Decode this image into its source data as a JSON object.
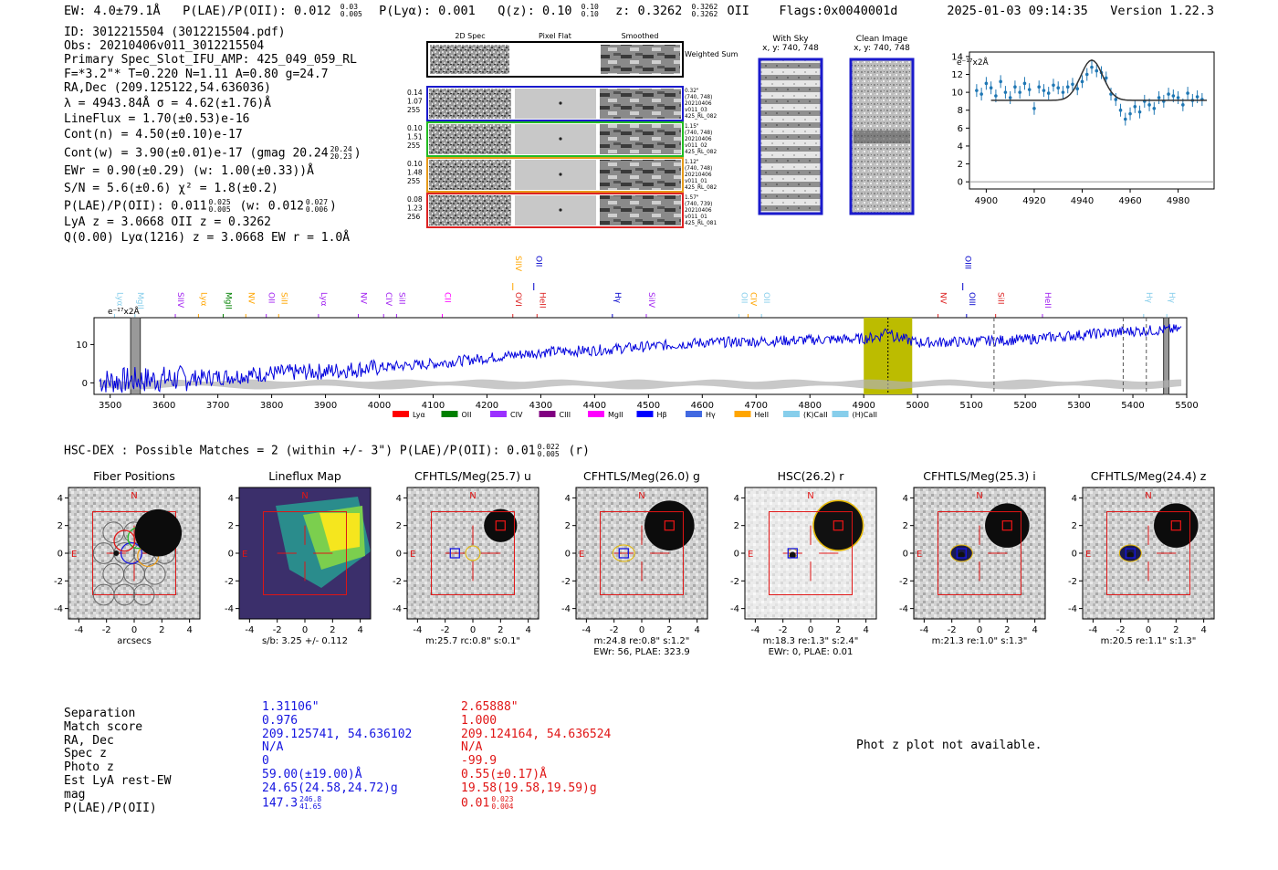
{
  "header": {
    "ew": "EW: 4.0±79.1Å",
    "plae_label": "P(LAE)/P(OII): 0.012",
    "plae_hi": "0.03",
    "plae_lo": "0.005",
    "plya": "P(Lyα): 0.001",
    "qz_label": "Q(z): 0.10",
    "qz_hi": "0.10",
    "qz_lo": "0.10",
    "z_label": "z: 0.3262",
    "z_hi": "0.3262",
    "z_lo": "0.3262",
    "z_line": "OII",
    "flags": "Flags:0x0040001d",
    "datetime": "2025-01-03 09:14:35",
    "version": "Version 1.22.3"
  },
  "info": {
    "id": "ID: 3012215504 (3012215504.pdf)",
    "obs": "Obs: 20210406v011_3012215504",
    "primary": "Primary Spec_Slot_IFU_AMP: 425_049_059_RL",
    "fwhm": "F=*3.2\"*  T=0.220  N=1.11  A=0.80  g=24.7",
    "radec": "RA,Dec (209.125122,54.636036)",
    "lambda": "λ = 4943.84Å  σ = 4.62(±1.76)Å",
    "lineflux": "LineFlux = 1.70(±0.53)e-16",
    "contn": "Cont(n) = 4.50(±0.10)e-17",
    "contw": "Cont(w) = 3.90(±0.01)e-17 (gmag 20.24",
    "contw_hi": "20.24",
    "contw_lo": "20.23",
    "contw_end": ")",
    "ewr": "EWr = 0.90(±0.29) (w: 1.00(±0.33))Å",
    "sn": "S/N = 5.6(±0.6)  χ² = 1.8(±0.2)",
    "plae": "P(LAE)/P(OII): 0.011",
    "plae_hi": "0.025",
    "plae_lo": "0.005",
    "plae_w": "(w: 0.012",
    "plae_w_hi": "0.027",
    "plae_w_lo": "0.006",
    "plae_end": ")",
    "lya_z": "LyA z = 3.0668  OII z = 0.3262",
    "q": "Q(0.00) Lyα(1216) z = 3.0668  EW r = 1.0Å"
  },
  "cutouts": {
    "col_headers": [
      "2D Spec",
      "Pixel Flat",
      "Smoothed"
    ],
    "weighted": "Weighted Sum",
    "rows": [
      {
        "vals": [
          "0.14",
          "1.07",
          "255"
        ],
        "meta": [
          "0.32\"",
          "(740, 748)",
          "20210406",
          "v011_03",
          "425_RL_082"
        ],
        "color": "#1a1acc"
      },
      {
        "vals": [
          "0.10",
          "1.51",
          "255"
        ],
        "meta": [
          "1.15\"",
          "(740, 748)",
          "20210406",
          "v011_02",
          "425_RL_082"
        ],
        "color": "#22bb22"
      },
      {
        "vals": [
          "0.10",
          "1.48",
          "255"
        ],
        "meta": [
          "1.12\"",
          "(740, 748)",
          "20210406",
          "v011_01",
          "425_RL_082"
        ],
        "color": "#e69a1a"
      },
      {
        "vals": [
          "0.08",
          "1.23",
          "256"
        ],
        "meta": [
          "1.57\"",
          "(740, 739)",
          "20210406",
          "v011_01",
          "425_RL_081"
        ],
        "color": "#dd2222"
      }
    ],
    "with_sky_title": "With Sky",
    "with_sky_xy": "x, y: 740, 748",
    "clean_title": "Clean Image",
    "clean_xy": "x, y: 740, 748"
  },
  "zoom_plot": {
    "unit": "e⁻¹⁷x2Å",
    "xticks": [
      "4900",
      "4920",
      "4940",
      "4960",
      "4980"
    ],
    "yticks": [
      "0",
      "2",
      "4",
      "6",
      "8",
      "10",
      "12",
      "14"
    ]
  },
  "lines_top": [
    {
      "name": "Lyα",
      "color": "#87ceeb",
      "w": 3508
    },
    {
      "name": "MgII",
      "color": "#87ceeb",
      "w": 3546
    },
    {
      "name": "SIIV",
      "color": "#a020f0",
      "w": 3621
    },
    {
      "name": "Lyα",
      "color": "#ffa500",
      "w": 3664
    },
    {
      "name": "MgII",
      "color": "#008000",
      "w": 3710
    },
    {
      "name": "NV",
      "color": "#ffa500",
      "w": 3752
    },
    {
      "name": "OII",
      "color": "#a020f0",
      "w": 3790
    },
    {
      "name": "SiII",
      "color": "#ffa500",
      "w": 3813
    },
    {
      "name": "Lyα",
      "color": "#a020f0",
      "w": 3887
    },
    {
      "name": "NV",
      "color": "#a020f0",
      "w": 3961
    },
    {
      "name": "CIV",
      "color": "#a020f0",
      "w": 4008
    },
    {
      "name": "SiII",
      "color": "#a020f0",
      "w": 4032
    },
    {
      "name": "CII",
      "color": "#ff00ff",
      "w": 4117
    },
    {
      "name": "OVI",
      "color": "#dd2222",
      "w": 4248
    },
    {
      "name": "HeII",
      "color": "#dd2222",
      "w": 4293
    },
    {
      "name": "Hγ",
      "color": "#0000cc",
      "w": 4433
    },
    {
      "name": "SiIV",
      "color": "#a020f0",
      "w": 4496
    },
    {
      "name": "OII",
      "color": "#87ceeb",
      "w": 4668
    },
    {
      "name": "CIV",
      "color": "#ffa500",
      "w": 4685
    },
    {
      "name": "OII",
      "color": "#87ceeb",
      "w": 4710
    },
    {
      "name": "NV",
      "color": "#dd2222",
      "w": 5038
    },
    {
      "name": "OIII",
      "color": "#0000cc",
      "w": 5091
    },
    {
      "name": "SiII",
      "color": "#dd2222",
      "w": 5145
    },
    {
      "name": "HeII",
      "color": "#a020f0",
      "w": 5232
    },
    {
      "name": "Hγ",
      "color": "#87ceeb",
      "w": 5420
    },
    {
      "name": "Hγ",
      "color": "#87ceeb",
      "w": 5463
    }
  ],
  "lines_upper": [
    {
      "name": "SIIV",
      "color": "#ffa500",
      "w": 4248
    },
    {
      "name": "OII",
      "color": "#0000cc",
      "w": 4287
    },
    {
      "name": "OIII",
      "color": "#0000cc",
      "w": 5084
    }
  ],
  "chart_data": [
    {
      "type": "line",
      "title": "",
      "ylabel": "e⁻¹⁷x2Å",
      "xlim": [
        3470,
        5500
      ],
      "ylim": [
        -3,
        17
      ],
      "xticks": [
        3500,
        3600,
        3700,
        3800,
        3900,
        4000,
        4100,
        4200,
        4300,
        4400,
        4500,
        4600,
        4700,
        4800,
        4900,
        5000,
        5100,
        5200,
        5300,
        5400,
        5500
      ],
      "yticks": [
        0,
        10
      ],
      "series": [
        {
          "name": "spectrum",
          "x": [
            3500,
            3600,
            3700,
            3800,
            3900,
            4000,
            4100,
            4200,
            4300,
            4400,
            4500,
            4600,
            4700,
            4800,
            4900,
            4945,
            5000,
            5100,
            5200,
            5300,
            5400,
            5500
          ],
          "values": [
            0.5,
            1.0,
            1.5,
            2.5,
            3.0,
            4.0,
            5.0,
            6.5,
            8.0,
            8.5,
            9.5,
            10.5,
            10.8,
            11.2,
            11.5,
            12.5,
            10.5,
            10.8,
            11.3,
            12.5,
            13.5,
            14.0
          ]
        }
      ],
      "highlight_range": [
        4900,
        4990
      ],
      "marker_line": 4945,
      "legend": [
        "Lyα",
        "OII",
        "CIV",
        "CIII",
        "MgII",
        "Hβ",
        "Hγ",
        "HeII",
        "(K)CaII",
        "(H)CaII"
      ],
      "legend_colors": [
        "#ff0000",
        "#008000",
        "#9b30ff",
        "#800080",
        "#ff00ff",
        "#0000ff",
        "#4169e1",
        "#ffa500",
        "#87ceeb",
        "#87ceeb"
      ]
    },
    {
      "type": "scatter",
      "title": "zoom spectrum",
      "xlim": [
        4893,
        4995
      ],
      "ylim": [
        -0.8,
        14.5
      ],
      "x": [
        4896,
        4898,
        4900,
        4902,
        4904,
        4906,
        4908,
        4910,
        4912,
        4914,
        4916,
        4918,
        4920,
        4922,
        4924,
        4926,
        4928,
        4930,
        4932,
        4934,
        4936,
        4938,
        4940,
        4942,
        4944,
        4946,
        4948,
        4950,
        4952,
        4954,
        4956,
        4958,
        4960,
        4962,
        4964,
        4966,
        4968,
        4970,
        4972,
        4974,
        4976,
        4978,
        4980,
        4982,
        4984,
        4986,
        4988,
        4990
      ],
      "values": [
        10.2,
        9.8,
        11.0,
        10.5,
        9.6,
        11.2,
        10.0,
        9.4,
        10.6,
        10.0,
        11.0,
        10.3,
        8.2,
        10.6,
        10.2,
        9.9,
        10.8,
        10.5,
        10.0,
        10.6,
        10.9,
        10.4,
        11.2,
        12.0,
        12.8,
        12.4,
        12.2,
        11.6,
        9.8,
        9.2,
        8.0,
        7.0,
        7.6,
        8.4,
        7.8,
        9.0,
        8.6,
        8.2,
        9.4,
        9.0,
        9.8,
        9.6,
        9.4,
        8.6,
        9.9,
        9.1,
        9.5,
        9.2
      ],
      "fit": "gaussian center 4944, amplitude 4.5, sigma 4.6, baseline 9.1"
    }
  ],
  "hsc": {
    "line": "HSC-DEX : Possible Matches = 2 (within +/- 3\")  P(LAE)/P(OII): 0.01",
    "hi": "0.022",
    "lo": "0.005",
    "end": "(r)"
  },
  "panels": [
    {
      "title": "Fiber Positions",
      "sub1": "arcsecs",
      "sub2": ""
    },
    {
      "title": "Lineflux Map",
      "sub1": "s/b: 3.25 +/- 0.112",
      "sub2": ""
    },
    {
      "title": "CFHTLS/Meg(25.7) u",
      "sub1": "m:25.7 rc:0.8\"  s:0.1\"",
      "sub2": ""
    },
    {
      "title": "CFHTLS/Meg(26.0) g",
      "sub1": "m:24.8  re:0.8\"  s:1.2\"",
      "sub2": "EWr: 56, PLAE: 323.9"
    },
    {
      "title": "HSC(26.2) r",
      "sub1": "m:18.3  re:1.3\"  s:2.4\"",
      "sub2": "EWr: 0, PLAE: 0.01"
    },
    {
      "title": "CFHTLS/Meg(25.3) i",
      "sub1": "m:21.3  re:1.0\"  s:1.3\"",
      "sub2": ""
    },
    {
      "title": "CFHTLS/Meg(24.4) z",
      "sub1": "m:20.5  re:1.1\"  s:1.3\"",
      "sub2": ""
    }
  ],
  "panel_axis": {
    "ticks": [
      "-4",
      "-2",
      "0",
      "2",
      "4"
    ],
    "n": "N",
    "e": "E"
  },
  "matches": {
    "labels": [
      "Separation",
      "Match score",
      "RA, Dec",
      "Spec z",
      "Photo z",
      "Est LyA rest-EW",
      "mag",
      "P(LAE)/P(OII)"
    ],
    "blue": [
      "1.31106\"",
      "0.976",
      "209.125741, 54.636102",
      "N/A",
      "0",
      "59.00(±19.00)Å",
      "24.65(24.58,24.72)g",
      "147.3"
    ],
    "blue_hi": "246.8",
    "blue_lo": "41.65",
    "red": [
      "2.65888\"",
      "1.000",
      "209.124164, 54.636524",
      "N/A",
      "-99.9",
      "0.55(±0.17)Å",
      "19.58(19.58,19.59)g",
      "0.01"
    ],
    "red_hi": "0.023",
    "red_lo": "0.004",
    "photz_msg": "Phot z plot not available."
  },
  "colors": {
    "blue": "#1515e0",
    "red": "#e01515",
    "spectrum": "#0000dd",
    "highlight": "#bcbc00"
  }
}
